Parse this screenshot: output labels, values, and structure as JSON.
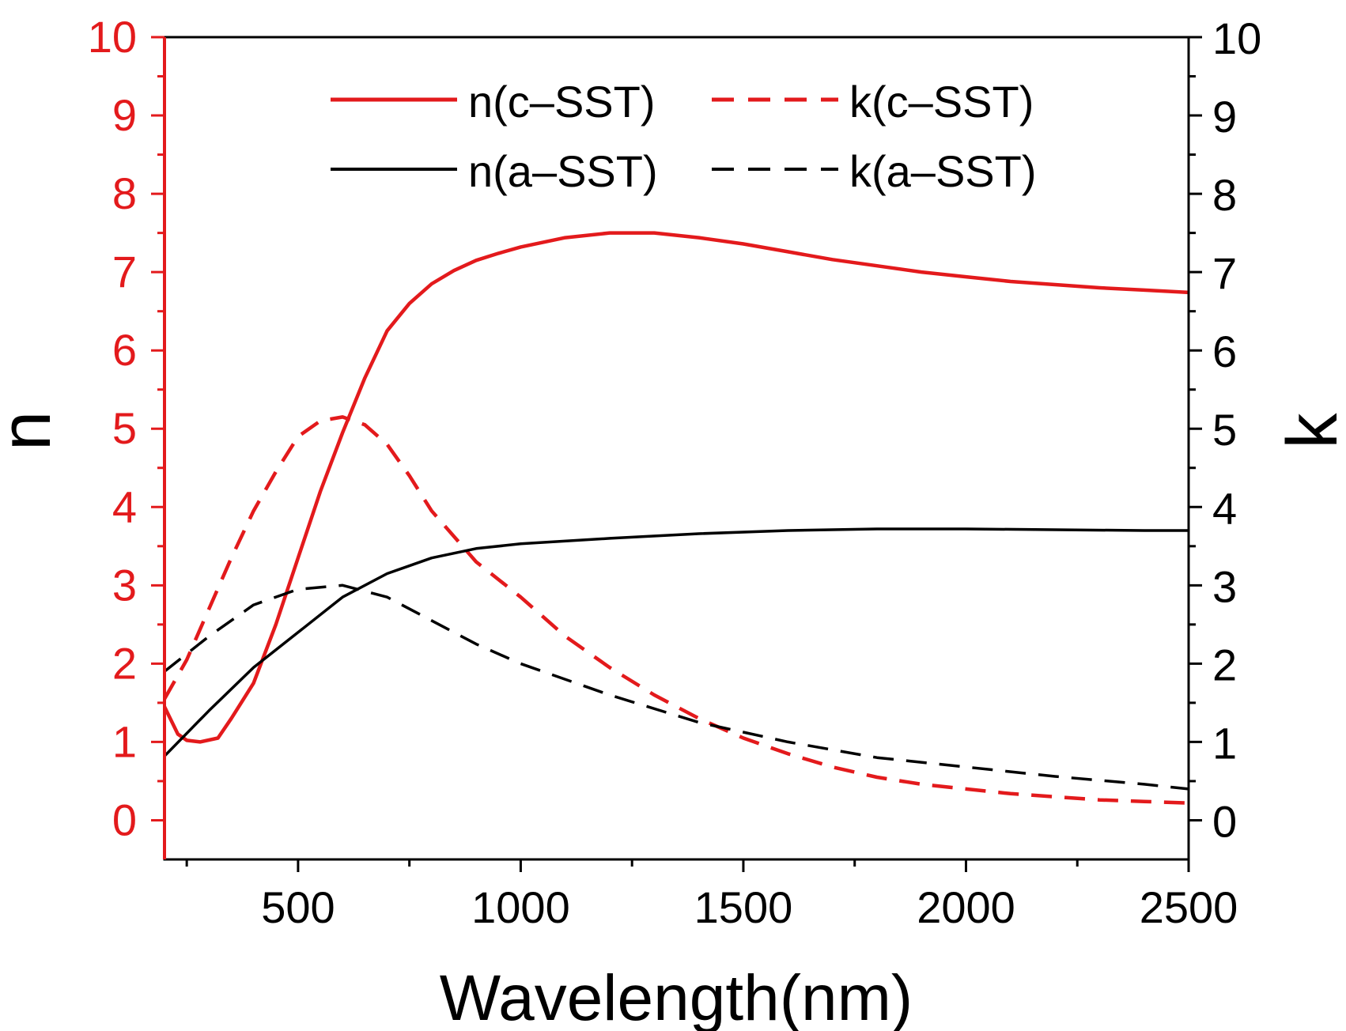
{
  "chart_data": {
    "type": "line",
    "xlabel": "Wavelength(nm)",
    "ylabel_left": "n",
    "ylabel_right": "k",
    "xlim": [
      200,
      2500
    ],
    "ylim_left": [
      -0.5,
      10
    ],
    "ylim_right": [
      -0.5,
      10
    ],
    "x_ticks": [
      500,
      1000,
      1500,
      2000,
      2500
    ],
    "y_ticks_left": [
      0,
      1,
      2,
      3,
      4,
      5,
      6,
      7,
      8,
      9,
      10
    ],
    "y_ticks_right": [
      0,
      1,
      2,
      3,
      4,
      5,
      6,
      7,
      8,
      9,
      10
    ],
    "colors": {
      "c_sst": "#e31a1c",
      "a_sst": "#000000",
      "left_axis": "#e31a1c",
      "right_axis": "#000000"
    },
    "legend_position": "top-right",
    "series": [
      {
        "name": "n(c–SST)",
        "axis": "left",
        "style": "solid",
        "color": "#e31a1c",
        "x": [
          200,
          230,
          250,
          280,
          320,
          350,
          400,
          450,
          500,
          550,
          600,
          650,
          700,
          750,
          800,
          850,
          900,
          950,
          1000,
          1100,
          1200,
          1300,
          1400,
          1500,
          1600,
          1700,
          1800,
          1900,
          2000,
          2100,
          2200,
          2300,
          2400,
          2500
        ],
        "y": [
          1.45,
          1.1,
          1.02,
          1.0,
          1.05,
          1.3,
          1.75,
          2.5,
          3.35,
          4.2,
          4.95,
          5.65,
          6.25,
          6.6,
          6.85,
          7.02,
          7.15,
          7.24,
          7.32,
          7.44,
          7.5,
          7.5,
          7.44,
          7.36,
          7.26,
          7.16,
          7.08,
          7.0,
          6.94,
          6.88,
          6.84,
          6.8,
          6.77,
          6.74
        ]
      },
      {
        "name": "k(c–SST)",
        "axis": "right",
        "style": "dashed",
        "color": "#e31a1c",
        "x": [
          200,
          250,
          300,
          350,
          400,
          450,
          500,
          550,
          600,
          650,
          700,
          750,
          800,
          900,
          1000,
          1100,
          1200,
          1300,
          1400,
          1500,
          1600,
          1700,
          1800,
          1900,
          2000,
          2100,
          2200,
          2300,
          2400,
          2500
        ],
        "y": [
          1.55,
          2.05,
          2.7,
          3.35,
          3.95,
          4.45,
          4.9,
          5.1,
          5.15,
          5.05,
          4.8,
          4.4,
          3.95,
          3.3,
          2.85,
          2.35,
          1.95,
          1.6,
          1.3,
          1.05,
          0.85,
          0.68,
          0.55,
          0.46,
          0.4,
          0.34,
          0.3,
          0.26,
          0.24,
          0.22
        ]
      },
      {
        "name": "n(a–SST)",
        "axis": "left",
        "style": "solid",
        "color": "#000000",
        "x": [
          200,
          300,
          400,
          500,
          600,
          700,
          800,
          900,
          1000,
          1200,
          1400,
          1600,
          1800,
          2000,
          2200,
          2400,
          2500
        ],
        "y": [
          0.82,
          1.4,
          1.95,
          2.4,
          2.85,
          3.15,
          3.35,
          3.47,
          3.53,
          3.6,
          3.66,
          3.7,
          3.72,
          3.72,
          3.71,
          3.7,
          3.7
        ]
      },
      {
        "name": "k(a–SST)",
        "axis": "right",
        "style": "dashed",
        "color": "#000000",
        "x": [
          200,
          300,
          400,
          500,
          600,
          700,
          800,
          900,
          1000,
          1200,
          1400,
          1600,
          1800,
          2000,
          2200,
          2400,
          2500
        ],
        "y": [
          1.9,
          2.35,
          2.75,
          2.95,
          3.0,
          2.85,
          2.55,
          2.25,
          2.0,
          1.6,
          1.25,
          1.0,
          0.8,
          0.68,
          0.56,
          0.46,
          0.4
        ]
      }
    ]
  }
}
